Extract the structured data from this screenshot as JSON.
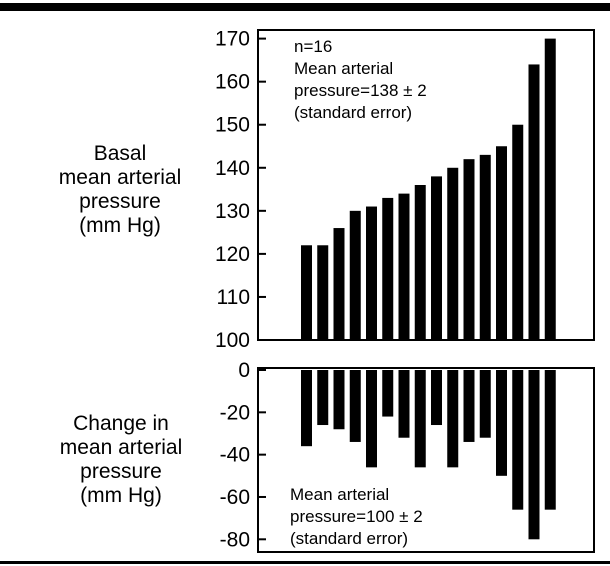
{
  "chart_data": [
    {
      "type": "bar",
      "ylabel": "Basal\nmean arterial\npressure\n(mm Hg)",
      "ylim": [
        100,
        172
      ],
      "yticks": [
        170,
        160,
        150,
        140,
        130,
        120,
        110,
        100
      ],
      "values": [
        122,
        122,
        126,
        130,
        131,
        133,
        134,
        136,
        138,
        140,
        142,
        143,
        145,
        150,
        164,
        170
      ],
      "annotation": {
        "n": "n=16",
        "lines": [
          "Mean arterial",
          "pressure=138 ± 2",
          "(standard error)"
        ]
      },
      "grid": false
    },
    {
      "type": "bar",
      "ylabel": "Change in\nmean arterial\npressure\n(mm Hg)",
      "ylim": [
        -86,
        0
      ],
      "yticks": [
        0,
        -20,
        -40,
        -60,
        -80
      ],
      "values": [
        -36,
        -26,
        -28,
        -34,
        -46,
        -22,
        -32,
        -46,
        -26,
        -46,
        -34,
        -32,
        -50,
        -66,
        -80,
        -66
      ],
      "annotation": {
        "lines": [
          "Mean arterial",
          "pressure=100 ± 2",
          "(standard error)"
        ]
      },
      "grid": false
    }
  ]
}
